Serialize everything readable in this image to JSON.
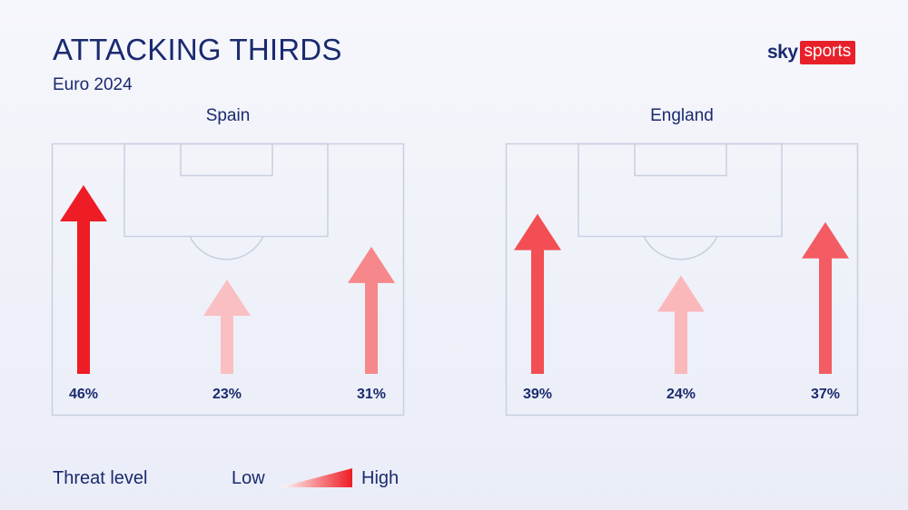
{
  "header": {
    "title": "ATTACKING THIRDS",
    "subtitle": "Euro 2024"
  },
  "logo": {
    "sky": "sky",
    "sports": "sports",
    "brand_color": "#e8202a"
  },
  "chart_data": {
    "type": "bar",
    "title": "ATTACKING THIRDS",
    "subtitle": "Euro 2024",
    "categories": [
      "Left",
      "Centre",
      "Right"
    ],
    "series": [
      {
        "name": "Spain",
        "values": [
          46,
          23,
          31
        ],
        "labels": [
          "46%",
          "23%",
          "31%"
        ]
      },
      {
        "name": "England",
        "values": [
          39,
          24,
          37
        ],
        "labels": [
          "39%",
          "24%",
          "37%"
        ]
      }
    ],
    "unit": "%",
    "max_value": 46,
    "encoding": "arrow length and colour intensity"
  },
  "legend": {
    "title": "Threat level",
    "low": "Low",
    "high": "High",
    "color_low": "#ffffff",
    "color_high": "#ee1c24"
  }
}
